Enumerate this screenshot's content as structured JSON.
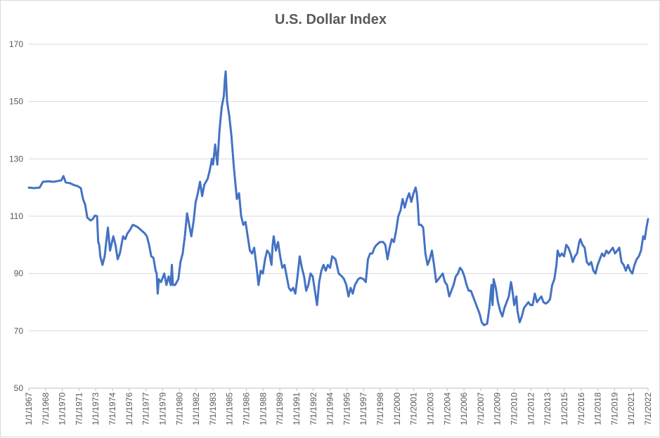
{
  "chart_data": {
    "type": "line",
    "title": "U.S. Dollar Index",
    "xlabel": "",
    "ylabel": "",
    "ylim": [
      50,
      170
    ],
    "yticks": [
      50,
      70,
      90,
      110,
      130,
      150,
      170
    ],
    "xticks": [
      "1/1/1967",
      "7/1/1968",
      "1/1/1970",
      "7/1/1971",
      "1/1/1973",
      "7/1/1974",
      "1/1/1976",
      "7/1/1977",
      "1/1/1979",
      "7/1/1980",
      "1/1/1982",
      "7/1/1983",
      "1/1/1985",
      "7/1/1986",
      "1/1/1988",
      "7/1/1989",
      "1/1/1991",
      "7/1/1992",
      "1/1/1994",
      "7/1/1995",
      "1/1/1997",
      "7/1/1998",
      "1/1/2000",
      "7/1/2001",
      "1/1/2003",
      "7/1/2004",
      "1/1/2006",
      "7/1/2007",
      "1/1/2009",
      "7/1/2010",
      "1/1/2012",
      "7/1/2013",
      "1/1/2015",
      "7/1/2016",
      "1/1/2018",
      "7/1/2019",
      "1/1/2021",
      "7/1/2022"
    ],
    "grid": true,
    "legend": "none",
    "line_color": "#4472c4",
    "series": [
      {
        "points": [
          [
            1967.0,
            120
          ],
          [
            1967.5,
            119.8
          ],
          [
            1968.0,
            120
          ],
          [
            1968.3,
            122
          ],
          [
            1968.8,
            122.2
          ],
          [
            1969.3,
            122
          ],
          [
            1969.7,
            122.3
          ],
          [
            1970.0,
            122.5
          ],
          [
            1970.2,
            124
          ],
          [
            1970.4,
            121.8
          ],
          [
            1970.8,
            121.5
          ],
          [
            1971.2,
            120.8
          ],
          [
            1971.5,
            120.5
          ],
          [
            1971.8,
            119.8
          ],
          [
            1972.0,
            116
          ],
          [
            1972.2,
            114
          ],
          [
            1972.4,
            109.5
          ],
          [
            1972.7,
            108.5
          ],
          [
            1972.9,
            109
          ],
          [
            1973.1,
            110.2
          ],
          [
            1973.3,
            110
          ],
          [
            1973.4,
            101
          ],
          [
            1973.5,
            100
          ],
          [
            1973.6,
            96
          ],
          [
            1973.8,
            93
          ],
          [
            1974.0,
            96
          ],
          [
            1974.3,
            106
          ],
          [
            1974.5,
            98
          ],
          [
            1974.8,
            103
          ],
          [
            1975.0,
            100
          ],
          [
            1975.2,
            95
          ],
          [
            1975.4,
            97
          ],
          [
            1975.7,
            103
          ],
          [
            1975.9,
            102
          ],
          [
            1976.1,
            104
          ],
          [
            1976.3,
            105
          ],
          [
            1976.6,
            107
          ],
          [
            1976.9,
            106.5
          ],
          [
            1977.1,
            106
          ],
          [
            1977.4,
            105
          ],
          [
            1977.7,
            104
          ],
          [
            1977.9,
            103
          ],
          [
            1978.1,
            100
          ],
          [
            1978.3,
            96
          ],
          [
            1978.5,
            95.5
          ],
          [
            1978.7,
            91
          ],
          [
            1978.8,
            90
          ],
          [
            1978.9,
            83
          ],
          [
            1979.0,
            88
          ],
          [
            1979.2,
            87
          ],
          [
            1979.5,
            90
          ],
          [
            1979.7,
            86
          ],
          [
            1979.9,
            89
          ],
          [
            1980.1,
            86
          ],
          [
            1980.2,
            93
          ],
          [
            1980.3,
            86
          ],
          [
            1980.5,
            86
          ],
          [
            1980.8,
            88
          ],
          [
            1981.0,
            94
          ],
          [
            1981.2,
            97
          ],
          [
            1981.4,
            103
          ],
          [
            1981.6,
            111
          ],
          [
            1981.8,
            107
          ],
          [
            1982.0,
            103
          ],
          [
            1982.2,
            108
          ],
          [
            1982.4,
            115
          ],
          [
            1982.6,
            118
          ],
          [
            1982.8,
            122
          ],
          [
            1983.0,
            117
          ],
          [
            1983.2,
            121
          ],
          [
            1983.5,
            123
          ],
          [
            1983.7,
            126
          ],
          [
            1983.9,
            130
          ],
          [
            1984.0,
            128
          ],
          [
            1984.2,
            135
          ],
          [
            1984.4,
            128
          ],
          [
            1984.6,
            140
          ],
          [
            1984.8,
            148
          ],
          [
            1985.0,
            152
          ],
          [
            1985.1,
            158
          ],
          [
            1985.17,
            160.5
          ],
          [
            1985.3,
            150
          ],
          [
            1985.5,
            145
          ],
          [
            1985.7,
            138
          ],
          [
            1985.9,
            128
          ],
          [
            1986.0,
            124
          ],
          [
            1986.2,
            116
          ],
          [
            1986.4,
            118
          ],
          [
            1986.6,
            110
          ],
          [
            1986.8,
            107
          ],
          [
            1987.0,
            108
          ],
          [
            1987.2,
            103
          ],
          [
            1987.4,
            98
          ],
          [
            1987.6,
            97
          ],
          [
            1987.8,
            99
          ],
          [
            1988.0,
            93
          ],
          [
            1988.2,
            86
          ],
          [
            1988.4,
            91
          ],
          [
            1988.6,
            90
          ],
          [
            1988.8,
            95
          ],
          [
            1989.0,
            98
          ],
          [
            1989.2,
            97
          ],
          [
            1989.4,
            93
          ],
          [
            1989.5,
            100
          ],
          [
            1989.6,
            103
          ],
          [
            1989.8,
            98
          ],
          [
            1990.0,
            101
          ],
          [
            1990.2,
            96
          ],
          [
            1990.4,
            92
          ],
          [
            1990.6,
            93
          ],
          [
            1990.8,
            89
          ],
          [
            1991.0,
            85
          ],
          [
            1991.2,
            84
          ],
          [
            1991.4,
            85
          ],
          [
            1991.6,
            83
          ],
          [
            1991.8,
            89
          ],
          [
            1992.0,
            96
          ],
          [
            1992.2,
            92
          ],
          [
            1992.4,
            89
          ],
          [
            1992.6,
            84
          ],
          [
            1992.8,
            86
          ],
          [
            1993.0,
            90
          ],
          [
            1993.2,
            89
          ],
          [
            1993.4,
            84
          ],
          [
            1993.6,
            79
          ],
          [
            1993.8,
            87
          ],
          [
            1994.0,
            91
          ],
          [
            1994.2,
            93
          ],
          [
            1994.4,
            91
          ],
          [
            1994.6,
            93
          ],
          [
            1994.8,
            92
          ],
          [
            1995.0,
            96
          ],
          [
            1995.3,
            95
          ],
          [
            1995.6,
            90
          ],
          [
            1995.9,
            89
          ],
          [
            1996.1,
            88
          ],
          [
            1996.3,
            86
          ],
          [
            1996.5,
            82
          ],
          [
            1996.7,
            85
          ],
          [
            1996.9,
            83
          ],
          [
            1997.1,
            86
          ],
          [
            1997.4,
            88
          ],
          [
            1997.6,
            88.5
          ],
          [
            1997.9,
            88
          ],
          [
            1998.1,
            87
          ],
          [
            1998.3,
            95
          ],
          [
            1998.5,
            97
          ],
          [
            1998.7,
            97
          ],
          [
            1998.9,
            99
          ],
          [
            1999.1,
            100
          ],
          [
            1999.4,
            101
          ],
          [
            1999.7,
            101
          ],
          [
            1999.9,
            100
          ],
          [
            2000.1,
            95
          ],
          [
            2000.3,
            99
          ],
          [
            2000.5,
            102
          ],
          [
            2000.7,
            101
          ],
          [
            2000.9,
            105
          ],
          [
            2001.1,
            110
          ],
          [
            2001.3,
            112
          ],
          [
            2001.5,
            116
          ],
          [
            2001.7,
            113
          ],
          [
            2001.9,
            116
          ],
          [
            2002.1,
            118
          ],
          [
            2002.3,
            115
          ],
          [
            2002.5,
            118
          ],
          [
            2002.7,
            120
          ],
          [
            2002.8,
            118
          ],
          [
            2002.9,
            114
          ],
          [
            2003.0,
            107
          ],
          [
            2003.2,
            107
          ],
          [
            2003.4,
            106
          ],
          [
            2003.6,
            97
          ],
          [
            2003.8,
            93
          ],
          [
            2004.0,
            95
          ],
          [
            2004.2,
            98
          ],
          [
            2004.4,
            93
          ],
          [
            2004.6,
            87
          ],
          [
            2004.8,
            88
          ],
          [
            2005.0,
            89
          ],
          [
            2005.2,
            90
          ],
          [
            2005.4,
            87
          ],
          [
            2005.6,
            86
          ],
          [
            2005.8,
            82
          ],
          [
            2006.0,
            84
          ],
          [
            2006.2,
            86
          ],
          [
            2006.4,
            89
          ],
          [
            2006.6,
            90
          ],
          [
            2006.8,
            92
          ],
          [
            2007.0,
            91
          ],
          [
            2007.2,
            89
          ],
          [
            2007.4,
            86
          ],
          [
            2007.6,
            84
          ],
          [
            2007.8,
            84
          ],
          [
            2008.0,
            82
          ],
          [
            2008.2,
            80
          ],
          [
            2008.4,
            78
          ],
          [
            2008.6,
            76
          ],
          [
            2008.8,
            73
          ],
          [
            2009.0,
            72
          ],
          [
            2009.3,
            72.5
          ],
          [
            2009.5,
            78
          ],
          [
            2009.7,
            86
          ],
          [
            2009.8,
            79
          ],
          [
            2009.9,
            88
          ],
          [
            2010.1,
            85
          ],
          [
            2010.3,
            80
          ],
          [
            2010.5,
            77
          ],
          [
            2010.7,
            75
          ],
          [
            2010.9,
            78
          ],
          [
            2011.1,
            80
          ],
          [
            2011.3,
            82
          ],
          [
            2011.5,
            87
          ],
          [
            2011.6,
            85
          ],
          [
            2011.8,
            79
          ],
          [
            2012.0,
            82
          ],
          [
            2012.1,
            77
          ],
          [
            2012.3,
            73
          ],
          [
            2012.5,
            75
          ],
          [
            2012.7,
            78
          ],
          [
            2012.9,
            79
          ],
          [
            2013.1,
            80
          ],
          [
            2013.3,
            79
          ],
          [
            2013.5,
            79
          ],
          [
            2013.7,
            83
          ],
          [
            2013.9,
            80
          ],
          [
            2014.1,
            81
          ],
          [
            2014.3,
            82
          ],
          [
            2014.5,
            80
          ],
          [
            2014.7,
            79.5
          ],
          [
            2014.9,
            80
          ],
          [
            2015.1,
            81
          ],
          [
            2015.3,
            86
          ],
          [
            2015.5,
            88
          ],
          [
            2015.7,
            93
          ],
          [
            2015.8,
            98
          ],
          [
            2016.0,
            96
          ],
          [
            2016.2,
            97
          ],
          [
            2016.4,
            96
          ],
          [
            2016.6,
            100
          ],
          [
            2016.8,
            99
          ],
          [
            2017.0,
            97
          ],
          [
            2017.2,
            94
          ],
          [
            2017.4,
            96
          ],
          [
            2017.6,
            97
          ],
          [
            2017.8,
            101
          ],
          [
            2017.9,
            102
          ],
          [
            2018.1,
            100
          ],
          [
            2018.3,
            99
          ],
          [
            2018.5,
            94
          ],
          [
            2018.7,
            93
          ],
          [
            2018.9,
            94
          ],
          [
            2019.1,
            91
          ],
          [
            2019.3,
            90
          ],
          [
            2019.5,
            93
          ],
          [
            2019.7,
            95
          ],
          [
            2019.9,
            97
          ],
          [
            2020.1,
            96
          ],
          [
            2020.3,
            98
          ],
          [
            2020.5,
            97
          ],
          [
            2020.7,
            98
          ],
          [
            2020.9,
            99
          ],
          [
            2021.1,
            97
          ],
          [
            2021.3,
            98
          ],
          [
            2021.5,
            99
          ],
          [
            2021.7,
            94
          ],
          [
            2021.9,
            93
          ],
          [
            2022.1,
            91
          ],
          [
            2022.3,
            93
          ],
          [
            2022.5,
            91
          ],
          [
            2022.7,
            90
          ],
          [
            2022.9,
            93
          ],
          [
            2023.1,
            95
          ],
          [
            2023.3,
            96
          ],
          [
            2023.5,
            98
          ],
          [
            2023.7,
            103
          ],
          [
            2023.85,
            102
          ],
          [
            2024.0,
            106
          ],
          [
            2024.15,
            109
          ]
        ]
      }
    ]
  }
}
